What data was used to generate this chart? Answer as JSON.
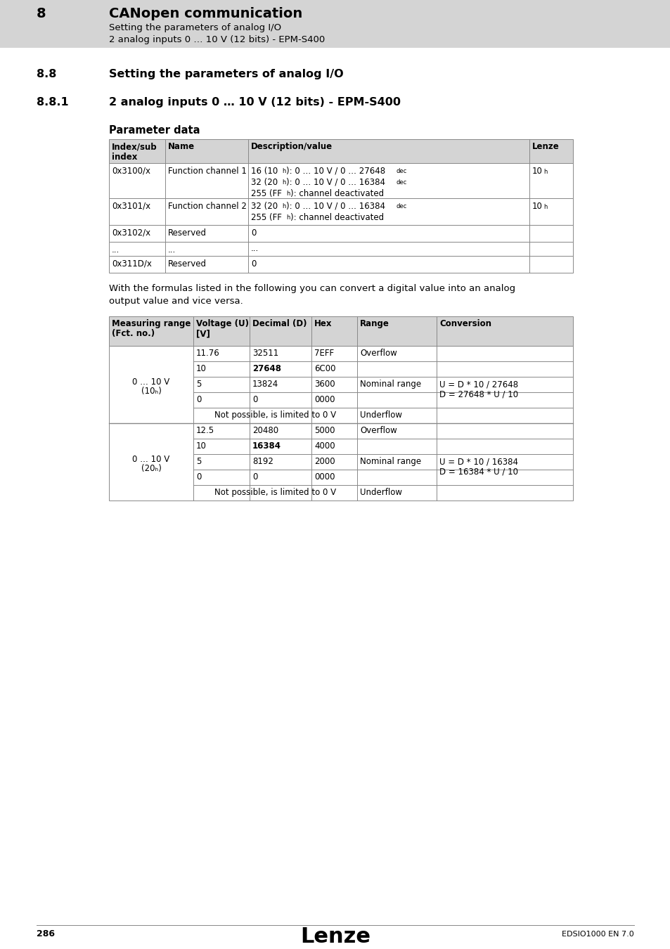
{
  "page_bg": "#ffffff",
  "header_bg": "#d4d4d4",
  "header_number": "8",
  "header_title": "CANopen communication",
  "header_sub1": "Setting the parameters of analog I/O",
  "header_sub2": "2 analog inputs 0 … 10 V (12 bits) - EPM-S400",
  "section_88": "8.8",
  "section_88_title": "Setting the parameters of analog I/O",
  "section_881": "8.8.1",
  "section_881_title": "2 analog inputs 0 … 10 V (12 bits) - EPM-S400",
  "param_data_title": "Parameter data",
  "formula_text1": "With the formulas listed in the following you can convert a digital value into an analog",
  "formula_text2": "output value and vice versa.",
  "footer_page": "286",
  "footer_lenze": "Lenze",
  "footer_doc": "EDSIO1000 EN 7.0"
}
